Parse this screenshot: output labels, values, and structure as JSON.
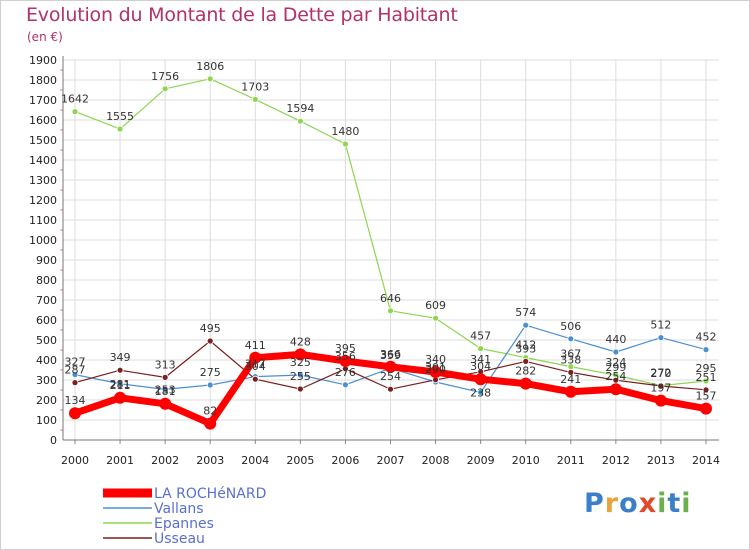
{
  "title": "Evolution du Montant de la Dette par Habitant",
  "unit": "(en €)",
  "brand": {
    "letters": [
      "P",
      "r",
      "o",
      "x",
      "i",
      "t",
      "i"
    ],
    "colors": [
      "#3a7fc8",
      "#e8a33c",
      "#3a7fc8",
      "#e04a2a",
      "#6ab04c",
      "#3a7fc8",
      "#6ab04c"
    ]
  },
  "chart_data": {
    "type": "line",
    "title": "Evolution du Montant de la Dette par Habitant",
    "ylabel": "(en €)",
    "xlabel": "",
    "ylim": [
      0,
      1900
    ],
    "yticks": [
      0,
      100,
      200,
      300,
      400,
      500,
      600,
      700,
      800,
      900,
      1000,
      1100,
      1200,
      1300,
      1400,
      1500,
      1600,
      1700,
      1800,
      1900
    ],
    "x": [
      "2000",
      "2001",
      "2002",
      "2003",
      "2004",
      "2005",
      "2006",
      "2007",
      "2008",
      "2009",
      "2010",
      "2011",
      "2012",
      "2013",
      "2014"
    ],
    "series": [
      {
        "name": "Epannes",
        "color": "#8cd650",
        "values": [
          1642,
          1555,
          1756,
          1806,
          1703,
          1594,
          1480,
          646,
          609,
          457,
          412,
          367,
          324,
          272,
          295
        ]
      },
      {
        "name": "Vallans",
        "color": "#4a90d0",
        "values": [
          327,
          281,
          253,
          275,
          317,
          325,
          276,
          359,
          290,
          238,
          574,
          506,
          440,
          512,
          452
        ]
      },
      {
        "name": "Usseau",
        "color": "#7a2020",
        "values": [
          287,
          349,
          313,
          495,
          304,
          255,
          356,
          254,
          301,
          341,
          393,
          338,
          299,
          270,
          251
        ]
      },
      {
        "name": "LA ROCHéNARD",
        "color": "#ff0000",
        "values": [
          134,
          211,
          181,
          82,
          411,
          428,
          395,
          366,
          340,
          304,
          282,
          241,
          254,
          197,
          157
        ]
      }
    ],
    "labels_shown": {
      "Epannes": [
        "1642",
        "1555",
        "1756",
        "1806",
        "1703",
        "1594",
        "1480",
        "646",
        "609",
        "457",
        "412",
        "367",
        "324",
        "272",
        "295"
      ],
      "Vallans": [
        "327",
        "",
        "",
        "275",
        "317",
        "325",
        "276",
        "359",
        "290",
        "",
        "574",
        "506",
        "440",
        "512",
        "452"
      ],
      "Usseau": [
        "287",
        "349",
        "313",
        "495",
        "304",
        "255",
        "356",
        "254",
        "301",
        "341",
        "393",
        "338",
        "299",
        "270",
        "251"
      ],
      "LA ROCHéNARD": [
        "134",
        "211",
        "181",
        "82",
        "411",
        "428",
        "395",
        "366",
        "340",
        "304",
        "282",
        "241",
        "254",
        "197",
        "157"
      ]
    },
    "extra_labels": [
      "281",
      "253",
      "238"
    ],
    "legend": [
      "LA ROCHéNARD",
      "Vallans",
      "Epannes",
      "Usseau"
    ],
    "legend_position": "bottom-left",
    "grid": true
  }
}
